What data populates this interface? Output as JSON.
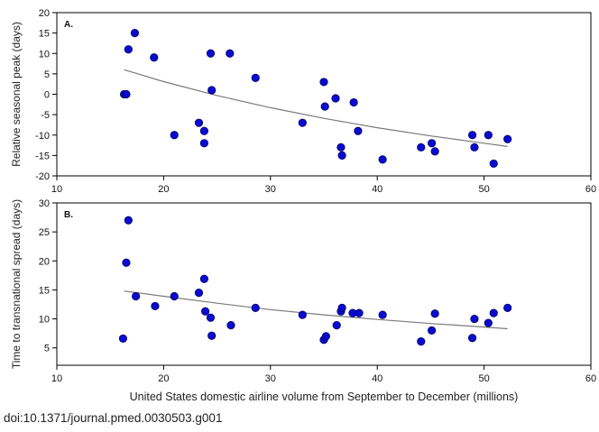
{
  "figure": {
    "caption": "doi:10.1371/journal.pmed.0030503.g001",
    "xlabel": "United States domestic airline volume from September to December (millions)",
    "colors": {
      "point": "#0a0ad0",
      "point_edge": "#000066",
      "fit_line": "#7a7a7a",
      "axes": "#000000"
    }
  },
  "chart_data": [
    {
      "type": "scatter",
      "panel_label": "A.",
      "ylabel": "Relative seasonal peak (days)",
      "xlim": [
        10,
        60
      ],
      "ylim": [
        -20,
        20
      ],
      "xticks": [
        10,
        20,
        30,
        40,
        50,
        60
      ],
      "yticks": [
        -20,
        -15,
        -10,
        -5,
        0,
        5,
        10,
        15,
        20
      ],
      "grid": false,
      "points": [
        [
          16.3,
          0
        ],
        [
          16.5,
          0
        ],
        [
          16.7,
          11
        ],
        [
          17.3,
          15
        ],
        [
          19.1,
          9
        ],
        [
          21.0,
          -10
        ],
        [
          23.3,
          -7
        ],
        [
          23.8,
          -9
        ],
        [
          23.8,
          -12
        ],
        [
          24.4,
          10
        ],
        [
          24.5,
          1
        ],
        [
          26.2,
          10
        ],
        [
          28.6,
          4
        ],
        [
          33.0,
          -7
        ],
        [
          35.0,
          3
        ],
        [
          35.1,
          -3
        ],
        [
          36.1,
          -1
        ],
        [
          36.6,
          -13
        ],
        [
          36.7,
          -15
        ],
        [
          37.8,
          -2
        ],
        [
          38.2,
          -9
        ],
        [
          40.5,
          -16
        ],
        [
          44.1,
          -13
        ],
        [
          45.1,
          -12
        ],
        [
          45.4,
          -14
        ],
        [
          48.9,
          -10
        ],
        [
          49.1,
          -13
        ],
        [
          50.4,
          -10
        ],
        [
          50.9,
          -17
        ],
        [
          52.2,
          -11
        ]
      ],
      "fit_line": [
        [
          16.3,
          6
        ],
        [
          20,
          3.1
        ],
        [
          25,
          -0.3
        ],
        [
          30,
          -3.3
        ],
        [
          35,
          -5.9
        ],
        [
          40,
          -8.2
        ],
        [
          45,
          -10.2
        ],
        [
          50,
          -12
        ],
        [
          52.2,
          -12.8
        ]
      ]
    },
    {
      "type": "scatter",
      "panel_label": "B.",
      "ylabel": "Time to transnational spread (days)",
      "xlim": [
        10,
        60
      ],
      "ylim": [
        2,
        30
      ],
      "xticks": [
        10,
        20,
        30,
        40,
        50,
        60
      ],
      "yticks": [
        5,
        10,
        15,
        20,
        25,
        30
      ],
      "grid": false,
      "points": [
        [
          16.2,
          6.6
        ],
        [
          16.5,
          19.7
        ],
        [
          16.7,
          27.0
        ],
        [
          17.4,
          13.9
        ],
        [
          19.2,
          12.2
        ],
        [
          21.0,
          13.9
        ],
        [
          23.3,
          14.5
        ],
        [
          23.8,
          16.9
        ],
        [
          23.9,
          11.3
        ],
        [
          24.4,
          10.2
        ],
        [
          24.5,
          7.1
        ],
        [
          26.3,
          8.9
        ],
        [
          28.6,
          11.9
        ],
        [
          33.0,
          10.7
        ],
        [
          35.0,
          6.4
        ],
        [
          35.2,
          7.0
        ],
        [
          36.2,
          8.9
        ],
        [
          36.6,
          11.3
        ],
        [
          36.7,
          11.9
        ],
        [
          37.7,
          11.0
        ],
        [
          38.3,
          11.0
        ],
        [
          40.5,
          10.7
        ],
        [
          44.1,
          6.1
        ],
        [
          45.1,
          8.0
        ],
        [
          45.4,
          10.9
        ],
        [
          48.9,
          6.7
        ],
        [
          49.1,
          10.0
        ],
        [
          50.4,
          9.3
        ],
        [
          50.9,
          11.0
        ],
        [
          52.2,
          11.9
        ]
      ],
      "fit_line": [
        [
          16.3,
          14.8
        ],
        [
          20,
          13.9
        ],
        [
          25,
          12.7
        ],
        [
          30,
          11.6
        ],
        [
          35,
          10.7
        ],
        [
          40,
          9.9
        ],
        [
          45,
          9.2
        ],
        [
          50,
          8.6
        ],
        [
          52.2,
          8.3
        ]
      ]
    }
  ]
}
